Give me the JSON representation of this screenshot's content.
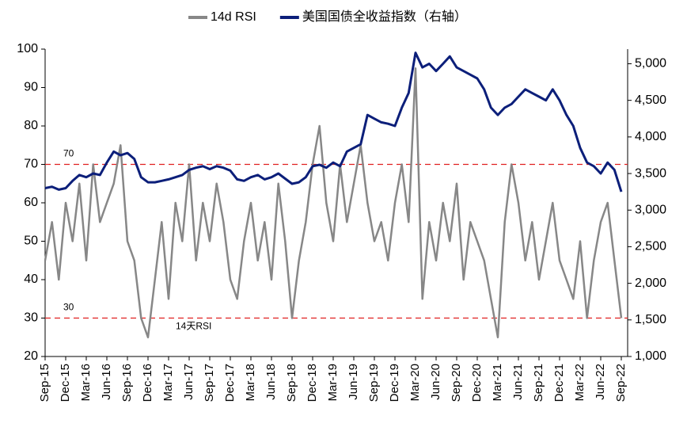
{
  "chart_data": {
    "type": "line",
    "categories": [
      "Sep-15",
      null,
      null,
      "Dec-15",
      null,
      null,
      "Mar-16",
      null,
      null,
      "Jun-16",
      null,
      null,
      "Sep-16",
      null,
      null,
      "Dec-16",
      null,
      null,
      "Mar-17",
      null,
      null,
      "Jun-17",
      null,
      null,
      "Sep-17",
      null,
      null,
      "Dec-17",
      null,
      null,
      "Mar-18",
      null,
      null,
      "Jun-18",
      null,
      null,
      "Sep-18",
      null,
      null,
      "Dec-18",
      null,
      null,
      "Mar-19",
      null,
      null,
      "Jun-19",
      null,
      null,
      "Sep-19",
      null,
      null,
      "Dec-19",
      null,
      null,
      "Mar-20",
      null,
      null,
      "Jun-20",
      null,
      null,
      "Sep-20",
      null,
      null,
      "Dec-20",
      null,
      null,
      "Mar-21",
      null,
      null,
      "Jun-21",
      null,
      null,
      "Sep-21",
      null,
      null,
      "Dec-21",
      null,
      null,
      "Mar-22",
      null,
      null,
      "Jun-22",
      null,
      null,
      "Sep-22"
    ],
    "series": [
      {
        "name": "14d RSI",
        "color": "#878787",
        "axis": "y",
        "values": [
          45,
          55,
          40,
          60,
          50,
          65,
          45,
          70,
          55,
          60,
          65,
          75,
          50,
          45,
          30,
          25,
          40,
          55,
          35,
          60,
          50,
          70,
          45,
          60,
          50,
          65,
          55,
          40,
          35,
          50,
          60,
          45,
          55,
          40,
          65,
          50,
          30,
          45,
          55,
          70,
          80,
          60,
          50,
          70,
          55,
          65,
          75,
          60,
          50,
          55,
          45,
          60,
          70,
          55,
          95,
          35,
          55,
          45,
          60,
          50,
          65,
          40,
          55,
          50,
          45,
          35,
          25,
          55,
          70,
          60,
          45,
          55,
          40,
          50,
          60,
          45,
          40,
          35,
          50,
          30,
          45,
          55,
          60,
          45,
          30
        ]
      },
      {
        "name": "美国国债全收益指数（右轴）",
        "color": "#0c1f7a",
        "axis": "y2",
        "values": [
          3300,
          3320,
          3280,
          3300,
          3400,
          3480,
          3450,
          3500,
          3480,
          3650,
          3800,
          3750,
          3780,
          3700,
          3450,
          3380,
          3380,
          3400,
          3420,
          3450,
          3480,
          3550,
          3580,
          3600,
          3560,
          3600,
          3580,
          3540,
          3420,
          3400,
          3450,
          3480,
          3420,
          3450,
          3500,
          3430,
          3360,
          3380,
          3450,
          3600,
          3620,
          3580,
          3650,
          3600,
          3800,
          3850,
          3900,
          4300,
          4250,
          4200,
          4180,
          4150,
          4400,
          4600,
          5150,
          4950,
          5000,
          4900,
          5000,
          5100,
          4950,
          4900,
          4850,
          4800,
          4650,
          4400,
          4300,
          4400,
          4450,
          4550,
          4650,
          4600,
          4550,
          4500,
          4650,
          4500,
          4300,
          4150,
          3850,
          3650,
          3600,
          3500,
          3650,
          3550,
          3250
        ]
      }
    ],
    "ylim": [
      20,
      100
    ],
    "yticks": [
      20,
      30,
      40,
      50,
      60,
      70,
      80,
      90,
      100
    ],
    "y2lim": [
      1000,
      5200
    ],
    "y2ticks": [
      {
        "value": 1000,
        "label": "1,000"
      },
      {
        "value": 1500,
        "label": "1,500"
      },
      {
        "value": 2000,
        "label": "2,000"
      },
      {
        "value": 2500,
        "label": "2,500"
      },
      {
        "value": 3000,
        "label": "3,000"
      },
      {
        "value": 3500,
        "label": "3,500"
      },
      {
        "value": 4000,
        "label": "4,000"
      },
      {
        "value": 4500,
        "label": "4,500"
      },
      {
        "value": 5000,
        "label": "5,000"
      }
    ],
    "ref_lines": [
      {
        "value": 70,
        "label": "70"
      },
      {
        "value": 30,
        "label": "30"
      }
    ],
    "ref_color": "#e02020",
    "annotation": "14天RSI"
  }
}
